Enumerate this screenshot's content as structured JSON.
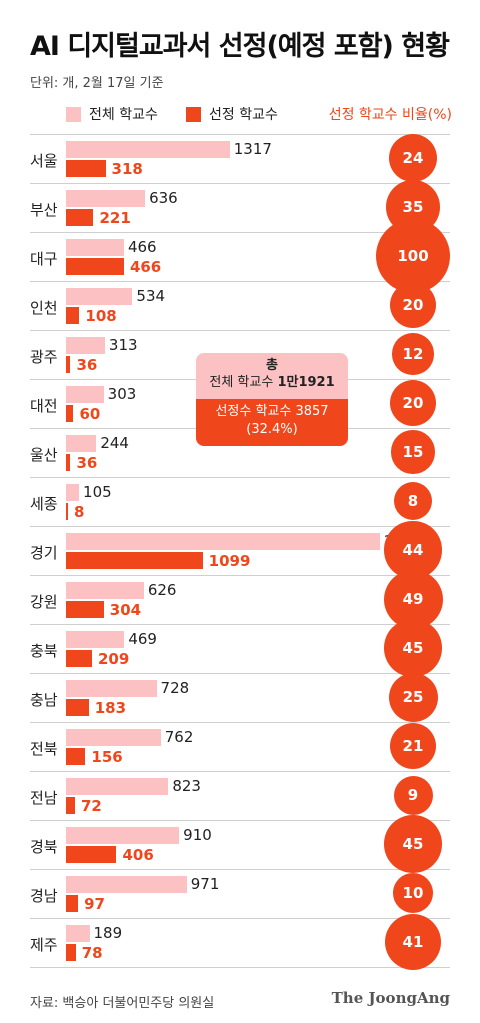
{
  "header": {
    "title": "AI 디지털교과서 선정(예정 포함) 현황",
    "subtitle": "단위: 개, 2월 17일 기준"
  },
  "legend": {
    "total_label": "전체 학교수",
    "selected_label": "선정 학교수",
    "ratio_label": "선정 학교수 비율(%)"
  },
  "colors": {
    "total": "#fbc1c3",
    "selected": "#f0461b",
    "text": "#222222"
  },
  "callout": {
    "line1": "총",
    "line2_prefix": "전체 학교수 ",
    "line2_value": "1만1921",
    "line3": "선정수 학교수 3857",
    "line4": "(32.4%)"
  },
  "footer": {
    "source": "자료: 백승아 더불어민주당 의원실",
    "logo": "The JoongAng"
  },
  "chart_data": {
    "type": "bar",
    "categories": [
      "서울",
      "부산",
      "대구",
      "인천",
      "광주",
      "대전",
      "울산",
      "세종",
      "경기",
      "강원",
      "충북",
      "충남",
      "전북",
      "전남",
      "경북",
      "경남",
      "제주"
    ],
    "series": [
      {
        "name": "전체 학교수",
        "values": [
          1317,
          636,
          466,
          534,
          313,
          303,
          244,
          105,
          2525,
          626,
          469,
          728,
          762,
          823,
          910,
          971,
          189
        ]
      },
      {
        "name": "선정 학교수",
        "values": [
          318,
          221,
          466,
          108,
          36,
          60,
          36,
          8,
          1099,
          304,
          209,
          183,
          156,
          72,
          406,
          97,
          78
        ]
      },
      {
        "name": "선정 학교수 비율(%)",
        "values": [
          24,
          35,
          100,
          20,
          12,
          20,
          15,
          8,
          44,
          49,
          45,
          25,
          21,
          9,
          45,
          10,
          41
        ]
      }
    ],
    "xlim": [
      0,
      2525
    ]
  }
}
